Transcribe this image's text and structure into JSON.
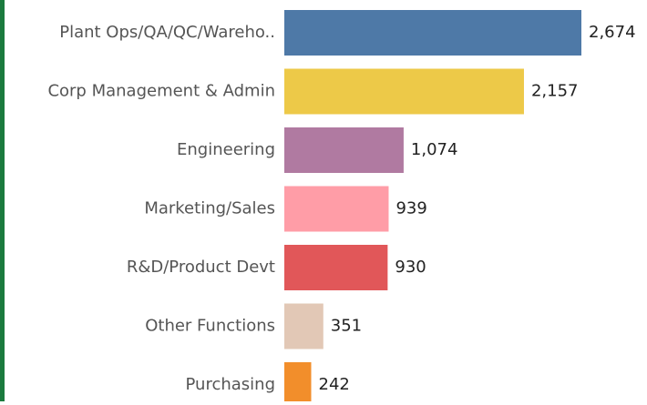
{
  "chart_data": {
    "type": "hbar",
    "categories": [
      "Plant Ops/QA/QC/Wareho..",
      "Corp Management & Admin",
      "Engineering",
      "Marketing/Sales",
      "R&D/Product Devt",
      "Other Functions",
      "Purchasing"
    ],
    "values": [
      2674,
      2157,
      1074,
      939,
      930,
      351,
      242
    ],
    "value_labels": [
      "2,674",
      "2,157",
      "1,074",
      "939",
      "930",
      "351",
      "242"
    ],
    "colors": [
      "#4e79a7",
      "#edc948",
      "#b07aa1",
      "#ff9da7",
      "#e15759",
      "#e2c8b6",
      "#f28e2b"
    ]
  }
}
